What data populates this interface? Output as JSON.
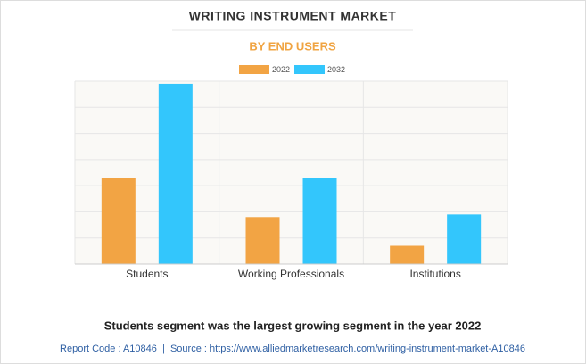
{
  "chart_data": {
    "type": "bar",
    "title": "WRITING INSTRUMENT MARKET",
    "subtitle": "BY END USERS",
    "categories": [
      "Students",
      "Working Professionals",
      "Institutions"
    ],
    "series": [
      {
        "name": "2022",
        "color": "#f2a444",
        "values": [
          3.3,
          1.8,
          0.7
        ]
      },
      {
        "name": "2032",
        "color": "#33c6fc",
        "values": [
          6.9,
          3.3,
          1.9
        ]
      }
    ],
    "ylim": [
      0,
      7
    ],
    "ygrid": [
      0,
      1,
      2,
      3,
      4,
      5,
      6,
      7
    ],
    "grid": true,
    "caption": "Students segment was the largest growing segment in the year 2022",
    "source": "Report Code : A10846  |  Source : https://www.alliedmarketresearch.com/writing-instrument-market-A10846"
  }
}
